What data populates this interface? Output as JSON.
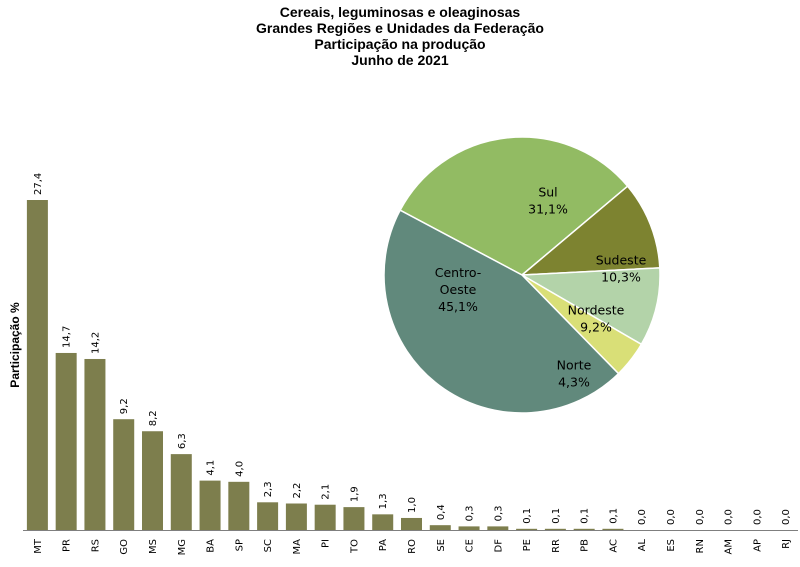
{
  "title": {
    "line1": "Cereais, leguminosas e oleaginosas",
    "line2": "Grandes Regiões e Unidades da Federação",
    "line3": "Participação na produção",
    "line4": "Junho de 2021"
  },
  "colors": {
    "bar": "#7d7e4d",
    "axis": "#7f7f7f"
  },
  "chart_data": [
    {
      "type": "bar",
      "ylabel": "Participação %",
      "ylim": [
        0,
        30
      ],
      "categories": [
        "MT",
        "PR",
        "RS",
        "GO",
        "MS",
        "MG",
        "BA",
        "SP",
        "SC",
        "MA",
        "PI",
        "TO",
        "PA",
        "RO",
        "SE",
        "CE",
        "DF",
        "PE",
        "RR",
        "PB",
        "AC",
        "AL",
        "ES",
        "RN",
        "AM",
        "AP",
        "RJ"
      ],
      "values": [
        27.4,
        14.7,
        14.2,
        9.2,
        8.2,
        6.3,
        4.1,
        4.0,
        2.3,
        2.2,
        2.1,
        1.9,
        1.3,
        1.0,
        0.4,
        0.3,
        0.3,
        0.1,
        0.1,
        0.1,
        0.1,
        0.0,
        0.0,
        0.0,
        0.0,
        0.0,
        0.0
      ],
      "data_labels": [
        "27,4",
        "14,7",
        "14,2",
        "9,2",
        "8,2",
        "6,3",
        "4,1",
        "4,0",
        "2,3",
        "2,2",
        "2,1",
        "1,9",
        "1,3",
        "1,0",
        "0,4",
        "0,3",
        "0,3",
        "0,1",
        "0,1",
        "0,1",
        "0,1",
        "0,0",
        "0,0",
        "0,0",
        "0,0",
        "0,0",
        "0,0"
      ]
    },
    {
      "type": "pie",
      "slices": [
        {
          "name": "Sul",
          "value": 31.1,
          "label_lines": [
            "Sul",
            "31,1%"
          ],
          "color": "#92bb63"
        },
        {
          "name": "Sudeste",
          "value": 10.3,
          "label_lines": [
            "Sudeste",
            "10,3%"
          ],
          "color": "#7d8330"
        },
        {
          "name": "Nordeste",
          "value": 9.2,
          "label_lines": [
            "Nordeste",
            "9,2%"
          ],
          "color": "#b3d3a9"
        },
        {
          "name": "Norte",
          "value": 4.3,
          "label_lines": [
            "Norte",
            "4,3%"
          ],
          "color": "#d9df77"
        },
        {
          "name": "Centro-Oeste",
          "value": 45.1,
          "label_lines": [
            "Centro-",
            "Oeste",
            "45,1%"
          ],
          "color": "#61897c"
        }
      ]
    }
  ]
}
